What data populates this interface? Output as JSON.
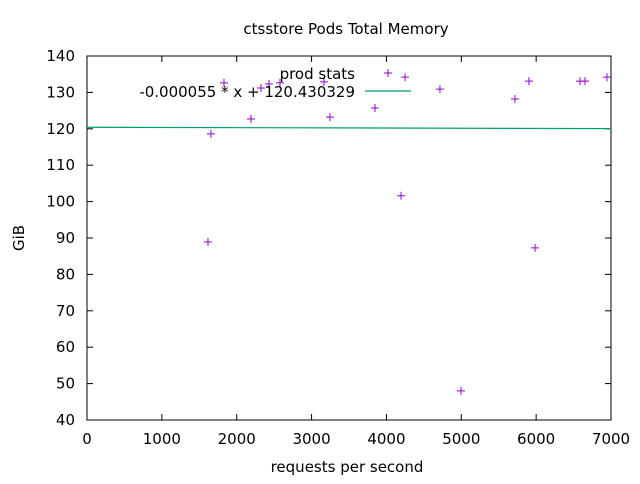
{
  "chart_data": {
    "type": "scatter",
    "title": "ctsstore Pods Total Memory",
    "xlabel": "requests per second",
    "ylabel": "GiB",
    "xlim": [
      0,
      7000
    ],
    "ylim": [
      40,
      140
    ],
    "xticks": [
      0,
      1000,
      2000,
      3000,
      4000,
      5000,
      6000,
      7000
    ],
    "yticks": [
      40,
      50,
      60,
      70,
      80,
      90,
      100,
      110,
      120,
      130,
      140
    ],
    "grid": false,
    "legend_position": "top-center",
    "series": [
      {
        "name": "prod stats",
        "kind": "points",
        "color": "#9400d3",
        "points": [
          [
            1616,
            88.9
          ],
          [
            1656,
            118.6
          ],
          [
            1830,
            132.6
          ],
          [
            2190,
            122.7
          ],
          [
            2324,
            131.2
          ],
          [
            2431,
            132.3
          ],
          [
            2578,
            132.6
          ],
          [
            3166,
            132.9
          ],
          [
            3246,
            123.2
          ],
          [
            3847,
            125.7
          ],
          [
            4195,
            101.6
          ],
          [
            4249,
            134.2
          ],
          [
            4715,
            130.9
          ],
          [
            4996,
            48.0
          ],
          [
            5717,
            128.2
          ],
          [
            5904,
            133.1
          ],
          [
            5985,
            87.3
          ],
          [
            6586,
            133.1
          ],
          [
            6653,
            133.1
          ],
          [
            6946,
            134.2
          ]
        ]
      },
      {
        "name": "-0.000055 * x + 120.430329",
        "kind": "line",
        "color": "#009e73",
        "slope": -5.5e-05,
        "intercept": 120.430329
      }
    ]
  }
}
